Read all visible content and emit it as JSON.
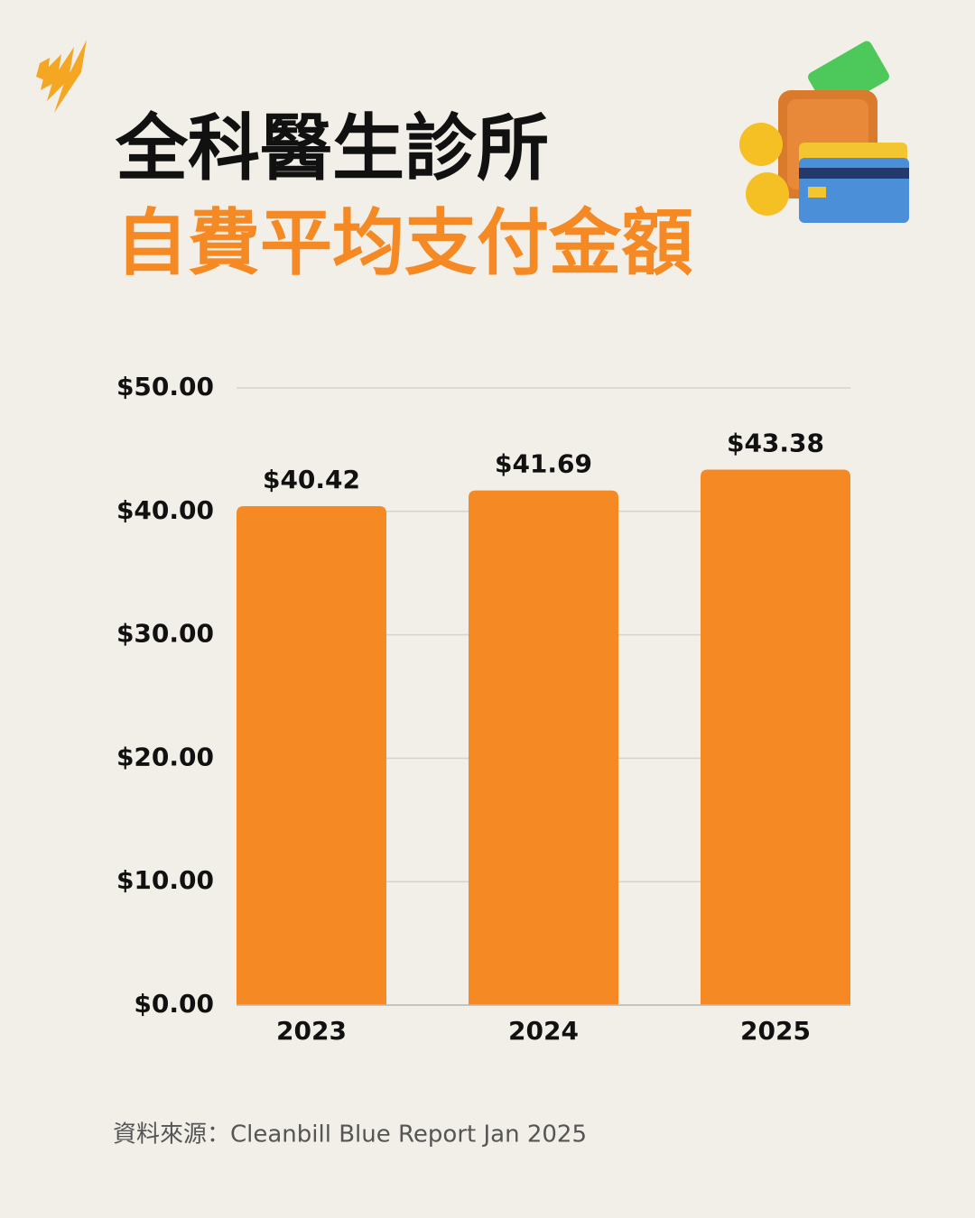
{
  "chart_data": {
    "type": "bar",
    "title": "全科醫生診所",
    "subtitle": "自費平均支付金額",
    "categories": [
      "2023",
      "2024",
      "2025"
    ],
    "values": [
      40.42,
      41.69,
      43.38
    ],
    "value_labels": [
      "$40.42",
      "$41.69",
      "$43.38"
    ],
    "color": "#f58a25",
    "ylim": [
      0,
      50
    ],
    "yticks": [
      {
        "value": 0,
        "label": "$0.00"
      },
      {
        "value": 10,
        "label": "$10.00"
      },
      {
        "value": 20,
        "label": "$20.00"
      },
      {
        "value": 30,
        "label": "$30.00"
      },
      {
        "value": 40,
        "label": "$40.00"
      },
      {
        "value": 50,
        "label": "$50.00"
      }
    ],
    "grid": true,
    "source": "資料來源：Cleanbill Blue Report Jan 2025"
  }
}
